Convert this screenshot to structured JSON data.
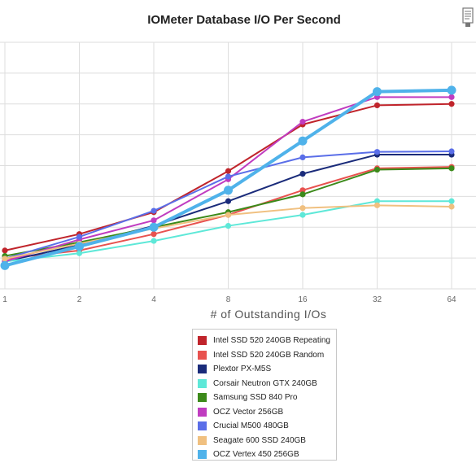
{
  "chart_data": {
    "type": "line",
    "title": "IOMeter Database I/O Per Second",
    "xlabel": "# of Outstanding I/Os",
    "ylabel": "",
    "x": [
      "1",
      "2",
      "4",
      "8",
      "16",
      "32",
      "64"
    ],
    "ylim": [
      0,
      9
    ],
    "grid": true,
    "legend_position": "bottom",
    "series": [
      {
        "name": "Intel SSD 520 240GB Repeating",
        "color": "#c0242b",
        "values": [
          1.4,
          2.0,
          2.8,
          4.3,
          6.0,
          6.7,
          6.75
        ]
      },
      {
        "name": "Intel SSD 520 240GB Random",
        "color": "#e8524f",
        "values": [
          1.1,
          1.4,
          2.0,
          2.7,
          3.6,
          4.4,
          4.45
        ]
      },
      {
        "name": "Plextor PX-M5S",
        "color": "#1a2b7a",
        "values": [
          1.0,
          1.6,
          2.3,
          3.2,
          4.2,
          4.9,
          4.9
        ]
      },
      {
        "name": "Corsair Neutron GTX 240GB",
        "color": "#5ee8d8",
        "values": [
          1.0,
          1.3,
          1.75,
          2.3,
          2.7,
          3.2,
          3.2
        ]
      },
      {
        "name": "Samsung SSD 840 Pro",
        "color": "#3c8a1a",
        "values": [
          1.2,
          1.7,
          2.25,
          2.8,
          3.45,
          4.35,
          4.4
        ]
      },
      {
        "name": "OCZ Vector 256GB",
        "color": "#c03cc0",
        "values": [
          1.0,
          1.8,
          2.5,
          4.0,
          6.1,
          7.0,
          7.0
        ]
      },
      {
        "name": "Crucial M500 480GB",
        "color": "#5a6ee8",
        "values": [
          1.1,
          1.9,
          2.85,
          4.1,
          4.8,
          5.0,
          5.02
        ]
      },
      {
        "name": "Seagate 600 SSD 240GB",
        "color": "#f0c080",
        "values": [
          1.1,
          1.65,
          2.2,
          2.7,
          2.95,
          3.05,
          3.0
        ]
      },
      {
        "name": "OCZ Vertex 450 256GB",
        "color": "#4fb2ea",
        "values": [
          0.85,
          1.55,
          2.25,
          3.6,
          5.4,
          7.2,
          7.25
        ]
      }
    ]
  }
}
